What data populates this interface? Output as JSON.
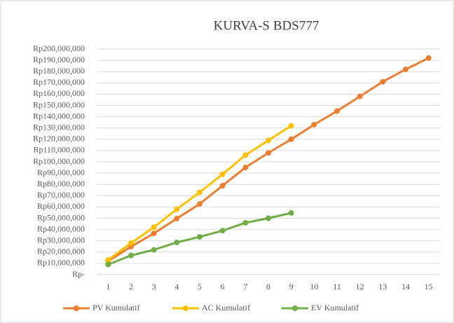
{
  "chart_data": {
    "type": "line",
    "title": "KURVA-S BDS777",
    "categories": [
      "1",
      "2",
      "3",
      "4",
      "5",
      "6",
      "7",
      "8",
      "9",
      "10",
      "11",
      "12",
      "13",
      "14",
      "15"
    ],
    "series": [
      {
        "name": "PV Kumulatif",
        "color": "#ed7d31",
        "values": [
          12000000,
          24800000,
          36600000,
          49700000,
          62700000,
          78900000,
          95000000,
          108000000,
          120000000,
          133000000,
          145000000,
          158000000,
          171000000,
          182000000,
          192000000
        ]
      },
      {
        "name": "AC Kumulatif",
        "color": "#ffc000",
        "values": [
          13000000,
          28000000,
          42000000,
          58000000,
          73000000,
          89000000,
          106000000,
          119000000,
          132000000,
          null,
          null,
          null,
          null,
          null,
          null
        ]
      },
      {
        "name": "EV Kumulatif",
        "color": "#70ad47",
        "values": [
          9000000,
          17000000,
          22000000,
          28600000,
          33500000,
          39000000,
          46000000,
          50000000,
          54700000,
          null,
          null,
          null,
          null,
          null,
          null
        ]
      }
    ],
    "ylim": [
      0,
      200000000
    ],
    "yticks": [
      {
        "value": 0,
        "label": "Rp-"
      },
      {
        "value": 10000000,
        "label": "Rp10,000,000"
      },
      {
        "value": 20000000,
        "label": "Rp20,000,000"
      },
      {
        "value": 30000000,
        "label": "Rp30,000,000"
      },
      {
        "value": 40000000,
        "label": "Rp40,000,000"
      },
      {
        "value": 50000000,
        "label": "Rp50,000,000"
      },
      {
        "value": 60000000,
        "label": "Rp60,000,000"
      },
      {
        "value": 70000000,
        "label": "Rp70,000,000"
      },
      {
        "value": 80000000,
        "label": "Rp80,000,000"
      },
      {
        "value": 90000000,
        "label": "Rp90,000,000"
      },
      {
        "value": 100000000,
        "label": "Rp100,000,000"
      },
      {
        "value": 110000000,
        "label": "Rp110,000,000"
      },
      {
        "value": 120000000,
        "label": "Rp120,000,000"
      },
      {
        "value": 130000000,
        "label": "Rp130,000,000"
      },
      {
        "value": 140000000,
        "label": "Rp140,000,000"
      },
      {
        "value": 150000000,
        "label": "Rp150,000,000"
      },
      {
        "value": 160000000,
        "label": "Rp160,000,000"
      },
      {
        "value": 170000000,
        "label": "Rp170,000,000"
      },
      {
        "value": 180000000,
        "label": "Rp180,000,000"
      },
      {
        "value": 190000000,
        "label": "Rp190,000,000"
      },
      {
        "value": 200000000,
        "label": "Rp200,000,000"
      }
    ],
    "grid": true,
    "legend": "bottom"
  }
}
